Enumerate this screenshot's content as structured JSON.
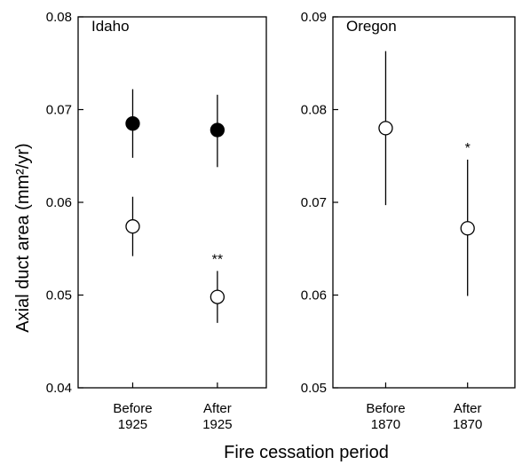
{
  "chart_data": [
    {
      "type": "scatter",
      "title": "Idaho",
      "xlabel": "Fire cessation period",
      "ylabel": "Axial duct area (mm²/yr)",
      "categories": [
        [
          "Before",
          "1925"
        ],
        [
          "After",
          "1925"
        ]
      ],
      "ylim": [
        0.04,
        0.08
      ],
      "yticks": [
        "0.04",
        "0.05",
        "0.06",
        "0.07",
        "0.08"
      ],
      "grid": false,
      "series": [
        {
          "marker": "filled-circle",
          "values": [
            0.0685,
            0.0678
          ],
          "lower": [
            0.0648,
            0.0638
          ],
          "upper": [
            0.0722,
            0.0716
          ],
          "labels": [
            "",
            ""
          ]
        },
        {
          "marker": "open-circle",
          "values": [
            0.0574,
            0.0498
          ],
          "lower": [
            0.0542,
            0.047
          ],
          "upper": [
            0.0606,
            0.0526
          ],
          "labels": [
            "",
            "**"
          ]
        }
      ]
    },
    {
      "type": "scatter",
      "title": "Oregon",
      "xlabel": "Fire cessation period",
      "categories": [
        [
          "Before",
          "1870"
        ],
        [
          "After",
          "1870"
        ]
      ],
      "ylim": [
        0.05,
        0.09
      ],
      "yticks": [
        "0.05",
        "0.06",
        "0.07",
        "0.08",
        "0.09"
      ],
      "grid": false,
      "series": [
        {
          "marker": "open-circle",
          "values": [
            0.078,
            0.0672
          ],
          "lower": [
            0.0697,
            0.0599
          ],
          "upper": [
            0.0863,
            0.0746
          ],
          "labels": [
            "",
            "*"
          ]
        }
      ]
    }
  ]
}
